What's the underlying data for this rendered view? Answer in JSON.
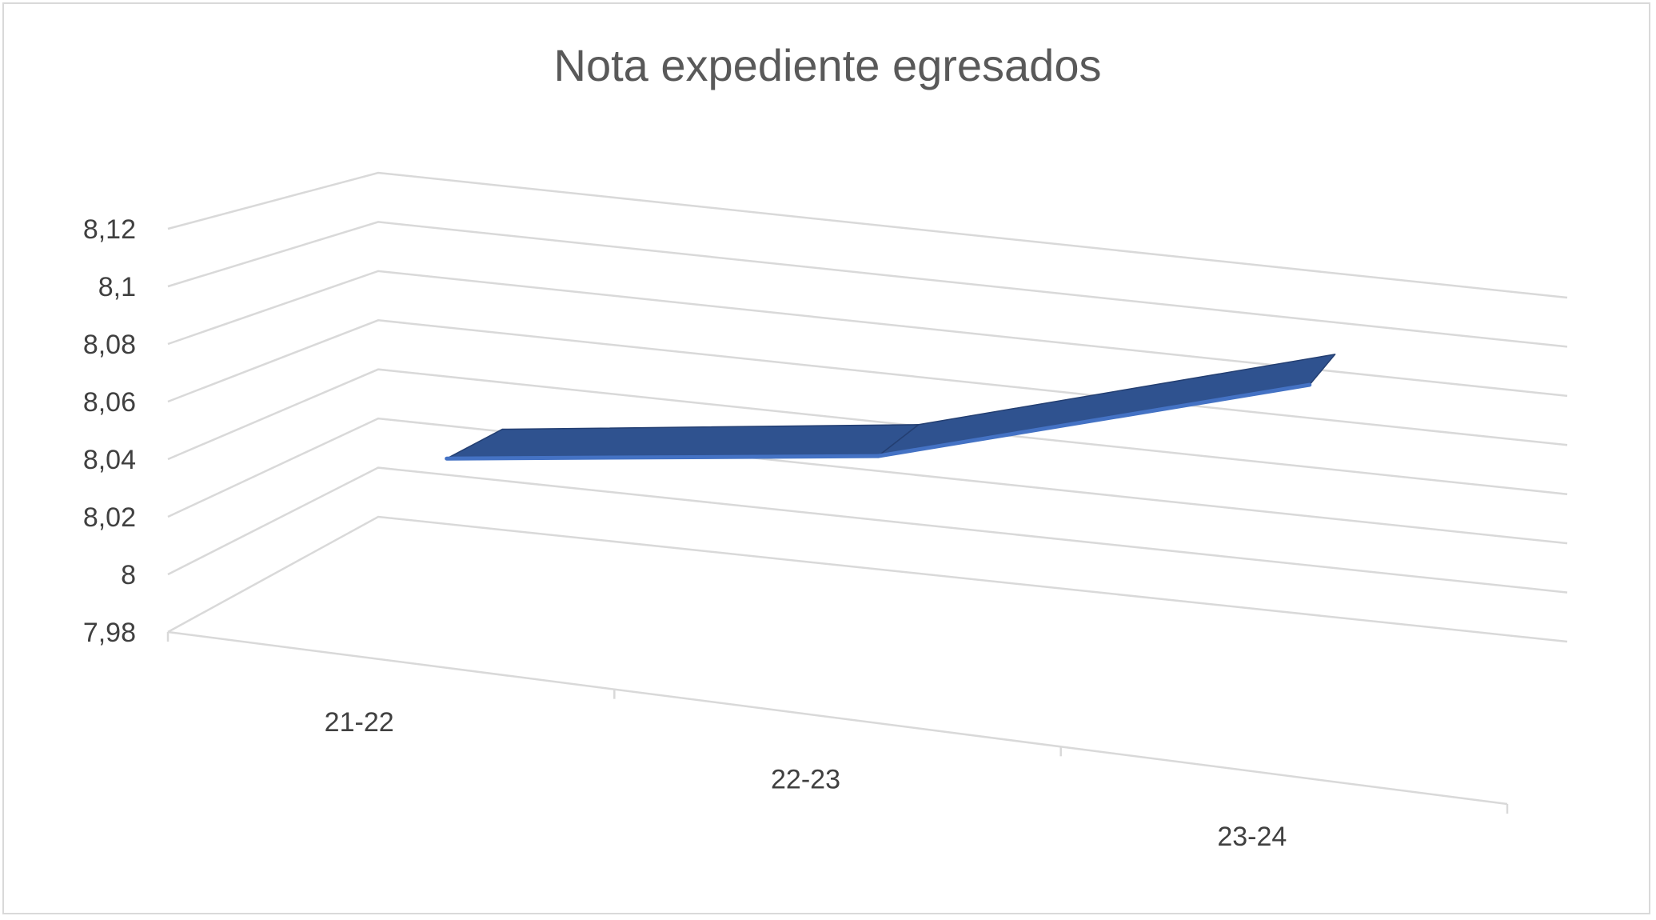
{
  "chart_data": {
    "type": "line",
    "title": "Nota expediente egresados",
    "categories": [
      "21-22",
      "22-23",
      "23-24"
    ],
    "series": [
      {
        "values": [
          8.04,
          8.06,
          8.105
        ],
        "color": "#2f528f"
      }
    ],
    "ylim": [
      7.98,
      8.12
    ],
    "y_ticks": [
      "8,12",
      "8,1",
      "8,08",
      "8,06",
      "8,04",
      "8,02",
      "8",
      "7,98"
    ],
    "grid": true,
    "legend": "none",
    "style": "3d-ribbon"
  }
}
